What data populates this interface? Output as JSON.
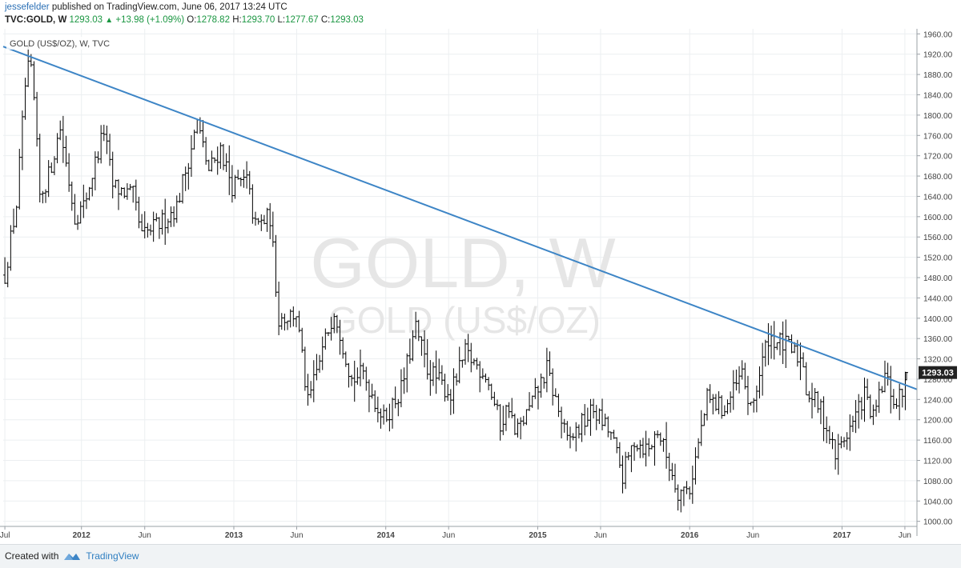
{
  "header": {
    "author": "jessefelder",
    "published_text": "published on TradingView.com, June 06, 2017 13:24 UTC",
    "symbol": "TVC:GOLD, W",
    "last": "1293.03",
    "change": "+13.98 (+1.09%)",
    "open_label": "O:",
    "open": "1278.82",
    "high_label": "H:",
    "high": "1293.70",
    "low_label": "L:",
    "low": "1277.67",
    "close_label": "C:",
    "close": "1293.03"
  },
  "chart_data": {
    "type": "ohlc",
    "legend": "GOLD (US$/OZ), W, TVC",
    "watermark_symbol": "GOLD, W",
    "watermark_desc": "GOLD (US$/OZ)",
    "price_label": "1293.03",
    "ylim": [
      990,
      1970
    ],
    "y_ticks": [
      1000,
      1040,
      1080,
      1120,
      1160,
      1200,
      1240,
      1280,
      1320,
      1360,
      1400,
      1440,
      1480,
      1520,
      1560,
      1600,
      1640,
      1680,
      1720,
      1760,
      1800,
      1840,
      1880,
      1920,
      1960
    ],
    "y_tick_labels": [
      "1000.00",
      "1040.00",
      "1080.00",
      "1120.00",
      "1160.00",
      "1200.00",
      "1240.00",
      "1280.00",
      "1320.00",
      "1360.00",
      "1400.00",
      "1440.00",
      "1480.00",
      "1520.00",
      "1560.00",
      "1600.00",
      "1640.00",
      "1680.00",
      "1720.00",
      "1760.00",
      "1800.00",
      "1840.00",
      "1880.00",
      "1920.00",
      "1960.00"
    ],
    "x_range": [
      "2011-06-27",
      "2017-06-30"
    ],
    "x_ticks": [
      {
        "date": "2011-07-01",
        "label": "Jul",
        "bold": false
      },
      {
        "date": "2012-01-01",
        "label": "2012",
        "bold": true
      },
      {
        "date": "2012-06-01",
        "label": "Jun",
        "bold": false
      },
      {
        "date": "2013-01-01",
        "label": "2013",
        "bold": true
      },
      {
        "date": "2013-06-01",
        "label": "Jun",
        "bold": false
      },
      {
        "date": "2014-01-01",
        "label": "2014",
        "bold": true
      },
      {
        "date": "2014-06-01",
        "label": "Jun",
        "bold": false
      },
      {
        "date": "2015-01-01",
        "label": "2015",
        "bold": true
      },
      {
        "date": "2015-06-01",
        "label": "Jun",
        "bold": false
      },
      {
        "date": "2016-01-01",
        "label": "2016",
        "bold": true
      },
      {
        "date": "2016-06-01",
        "label": "Jun",
        "bold": false
      },
      {
        "date": "2017-01-01",
        "label": "2017",
        "bold": true
      },
      {
        "date": "2017-06-01",
        "label": "Jun",
        "bold": false
      }
    ],
    "trendline": {
      "start": [
        "2011-06-27",
        1935
      ],
      "end": [
        "2017-06-30",
        1260
      ],
      "color": "#3d85c6"
    },
    "bars_color": "#000000",
    "anchors": [
      [
        "2011-07-01",
        1485
      ],
      [
        "2011-07-29",
        1625
      ],
      [
        "2011-08-22",
        1890
      ],
      [
        "2011-09-05",
        1880
      ],
      [
        "2011-09-23",
        1640
      ],
      [
        "2011-10-14",
        1680
      ],
      [
        "2011-11-11",
        1775
      ],
      [
        "2011-12-16",
        1600
      ],
      [
        "2012-01-06",
        1620
      ],
      [
        "2012-02-24",
        1770
      ],
      [
        "2012-03-16",
        1660
      ],
      [
        "2012-05-04",
        1640
      ],
      [
        "2012-05-25",
        1560
      ],
      [
        "2012-07-13",
        1590
      ],
      [
        "2012-08-17",
        1620
      ],
      [
        "2012-10-05",
        1785
      ],
      [
        "2012-11-02",
        1690
      ],
      [
        "2012-11-30",
        1735
      ],
      [
        "2012-12-28",
        1660
      ],
      [
        "2013-02-01",
        1670
      ],
      [
        "2013-02-22",
        1580
      ],
      [
        "2013-03-29",
        1600
      ],
      [
        "2013-04-19",
        1400
      ],
      [
        "2013-05-31",
        1410
      ],
      [
        "2013-06-28",
        1230
      ],
      [
        "2013-08-30",
        1420
      ],
      [
        "2013-10-11",
        1280
      ],
      [
        "2013-11-08",
        1290
      ],
      [
        "2013-12-27",
        1200
      ],
      [
        "2014-02-07",
        1260
      ],
      [
        "2014-03-14",
        1380
      ],
      [
        "2014-04-11",
        1300
      ],
      [
        "2014-06-06",
        1250
      ],
      [
        "2014-07-11",
        1330
      ],
      [
        "2014-08-29",
        1290
      ],
      [
        "2014-10-03",
        1190
      ],
      [
        "2014-10-24",
        1230
      ],
      [
        "2014-11-07",
        1170
      ],
      [
        "2014-12-12",
        1220
      ],
      [
        "2015-01-23",
        1300
      ],
      [
        "2015-03-13",
        1155
      ],
      [
        "2015-05-15",
        1220
      ],
      [
        "2015-06-26",
        1170
      ],
      [
        "2015-07-24",
        1090
      ],
      [
        "2015-08-21",
        1160
      ],
      [
        "2015-09-25",
        1140
      ],
      [
        "2015-10-16",
        1180
      ],
      [
        "2015-12-04",
        1060
      ],
      [
        "2016-01-01",
        1065
      ],
      [
        "2016-02-12",
        1240
      ],
      [
        "2016-03-25",
        1220
      ],
      [
        "2016-05-06",
        1290
      ],
      [
        "2016-05-27",
        1215
      ],
      [
        "2016-07-08",
        1365
      ],
      [
        "2016-08-19",
        1345
      ],
      [
        "2016-09-30",
        1315
      ],
      [
        "2016-10-07",
        1260
      ],
      [
        "2016-11-11",
        1220
      ],
      [
        "2016-12-16",
        1130
      ],
      [
        "2017-01-27",
        1195
      ],
      [
        "2017-02-24",
        1250
      ],
      [
        "2017-03-17",
        1200
      ],
      [
        "2017-04-14",
        1285
      ],
      [
        "2017-05-12",
        1225
      ],
      [
        "2017-06-02",
        1280
      ]
    ]
  },
  "footer": {
    "created_with": "Created with",
    "brand": "TradingView"
  }
}
